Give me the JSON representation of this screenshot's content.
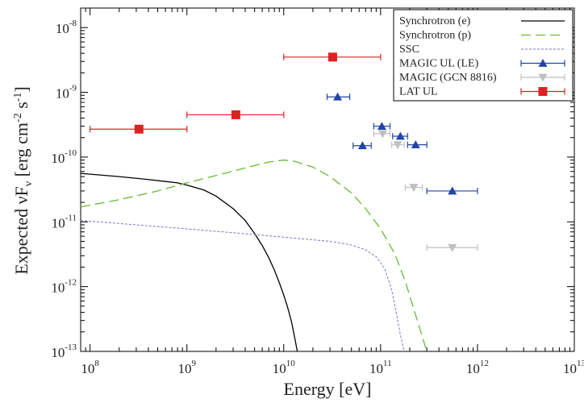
{
  "chart_data": {
    "type": "line",
    "xlabel": "Energy [eV]",
    "ylabel": {
      "prefix": "Expected ",
      "nu": "ν",
      "F": "F",
      "sub": "ν",
      "unit_a": " [erg cm",
      "sup_a": "-2",
      "unit_b": " s",
      "sup_b": "-1",
      "unit_c": "]"
    },
    "xscale": "log",
    "yscale": "log",
    "xlim": [
      80000000.0,
      10000000000000.0
    ],
    "ylim": [
      1e-13,
      2e-08
    ],
    "x_ticks": [
      {
        "base": "10",
        "exp": "8",
        "value": 100000000.0
      },
      {
        "base": "10",
        "exp": "9",
        "value": 1000000000.0
      },
      {
        "base": "10",
        "exp": "10",
        "value": 10000000000.0
      },
      {
        "base": "10",
        "exp": "11",
        "value": 100000000000.0
      },
      {
        "base": "10",
        "exp": "12",
        "value": 1000000000000.0
      },
      {
        "base": "10",
        "exp": "13",
        "value": 10000000000000.0
      }
    ],
    "y_ticks": [
      {
        "base": "10",
        "exp": "-13",
        "value": 1e-13
      },
      {
        "base": "10",
        "exp": "-12",
        "value": 1e-12
      },
      {
        "base": "10",
        "exp": "-11",
        "value": 1e-11
      },
      {
        "base": "10",
        "exp": "-10",
        "value": 1e-10
      },
      {
        "base": "10",
        "exp": "-9",
        "value": 1e-09
      },
      {
        "base": "10",
        "exp": "-8",
        "value": 1e-08
      }
    ],
    "grid": false,
    "legend_position": "top-right",
    "series": [
      {
        "name": "Synchrotron (e)",
        "kind": "line",
        "color": "#000000",
        "dash": "",
        "points": [
          [
            80000000.0,
            5.6e-11
          ],
          [
            200000000.0,
            5e-11
          ],
          [
            400000000.0,
            4.5e-11
          ],
          [
            600000000.0,
            4.2e-11
          ],
          [
            800000000.0,
            4e-11
          ],
          [
            1000000000.0,
            3.7e-11
          ],
          [
            1500000000.0,
            3.1e-11
          ],
          [
            2000000000.0,
            2.5e-11
          ],
          [
            3000000000.0,
            1.6e-11
          ],
          [
            4000000000.0,
            1.05e-11
          ],
          [
            5000000000.0,
            6.6e-12
          ],
          [
            6000000000.0,
            4.3e-12
          ],
          [
            7000000000.0,
            2.8e-12
          ],
          [
            8000000000.0,
            1.8e-12
          ],
          [
            9000000000.0,
            1.15e-12
          ],
          [
            10000000000.0,
            7.4e-13
          ],
          [
            11000000000.0,
            4.7e-13
          ],
          [
            12000000000.0,
            2.9e-13
          ],
          [
            13000000000.0,
            1.6e-13
          ],
          [
            13800000000.0,
            1e-13
          ]
        ]
      },
      {
        "name": "Synchrotron (p)",
        "kind": "line",
        "color": "#66bb33",
        "dash": "12,6",
        "points": [
          [
            80000000.0,
            1.7e-11
          ],
          [
            200000000.0,
            2.2e-11
          ],
          [
            500000000.0,
            3e-11
          ],
          [
            1000000000.0,
            4e-11
          ],
          [
            2000000000.0,
            5.2e-11
          ],
          [
            4000000000.0,
            6.8e-11
          ],
          [
            7000000000.0,
            8.4e-11
          ],
          [
            10000000000.0,
            9e-11
          ],
          [
            13000000000.0,
            8.6e-11
          ],
          [
            20000000000.0,
            7e-11
          ],
          [
            30000000000.0,
            5e-11
          ],
          [
            50000000000.0,
            2.8e-11
          ],
          [
            70000000000.0,
            1.6e-11
          ],
          [
            100000000000.0,
            7.8e-12
          ],
          [
            140000000000.0,
            3.2e-12
          ],
          [
            180000000000.0,
            1.2e-12
          ],
          [
            220000000000.0,
            4.5e-13
          ],
          [
            260000000000.0,
            2e-13
          ],
          [
            300000000000.0,
            1e-13
          ]
        ]
      },
      {
        "name": "SSC",
        "kind": "line",
        "color": "#7777cc",
        "dash": "3,2",
        "points": [
          [
            80000000.0,
            1.05e-11
          ],
          [
            300000000.0,
            9e-12
          ],
          [
            1000000000.0,
            7.8e-12
          ],
          [
            3000000000.0,
            6.8e-12
          ],
          [
            10000000000.0,
            5.8e-12
          ],
          [
            30000000000.0,
            5e-12
          ],
          [
            50000000000.0,
            4.4e-12
          ],
          [
            70000000000.0,
            3.7e-12
          ],
          [
            90000000000.0,
            2.9e-12
          ],
          [
            110000000000.0,
            1.9e-12
          ],
          [
            130000000000.0,
            9e-13
          ],
          [
            145000000000.0,
            4e-13
          ],
          [
            160000000000.0,
            1.8e-13
          ],
          [
            175000000000.0,
            1e-13
          ]
        ]
      },
      {
        "name": "MAGIC UL (LE)",
        "kind": "ul-points",
        "color": "#2244aa",
        "marker": "triangle-up",
        "points": [
          {
            "x": 36000000000.0,
            "y": 8.5e-10,
            "xerr": [
              28000000000.0,
              48000000000.0
            ]
          },
          {
            "x": 103000000000.0,
            "y": 3e-10,
            "xerr": [
              85000000000.0,
              125000000000.0
            ]
          },
          {
            "x": 160000000000.0,
            "y": 2.1e-10,
            "xerr": [
              133000000000.0,
              190000000000.0
            ]
          },
          {
            "x": 65000000000.0,
            "y": 1.5e-10,
            "xerr": [
              52000000000.0,
              80000000000.0
            ]
          },
          {
            "x": 230000000000.0,
            "y": 1.55e-10,
            "xerr": [
              190000000000.0,
              300000000000.0
            ]
          },
          {
            "x": 550000000000.0,
            "y": 3e-11,
            "xerr": [
              300000000000.0,
              1000000000000.0
            ]
          }
        ]
      },
      {
        "name": "MAGIC (GCN 8816)",
        "kind": "ul-points",
        "color": "#c0c0c0",
        "marker": "triangle-down",
        "points": [
          {
            "x": 105000000000.0,
            "y": 2.3e-10,
            "xerr": [
              85000000000.0,
              125000000000.0
            ]
          },
          {
            "x": 150000000000.0,
            "y": 1.55e-10,
            "xerr": [
              130000000000.0,
              175000000000.0
            ]
          },
          {
            "x": 220000000000.0,
            "y": 3.4e-11,
            "xerr": [
              180000000000.0,
              270000000000.0
            ]
          },
          {
            "x": 550000000000.0,
            "y": 4e-12,
            "xerr": [
              300000000000.0,
              1000000000000.0
            ]
          }
        ]
      },
      {
        "name": "LAT UL",
        "kind": "ul-points",
        "color": "#dd2222",
        "marker": "square",
        "points": [
          {
            "x": 320000000.0,
            "y": 2.7e-10,
            "xerr": [
              100000000.0,
              1000000000.0
            ]
          },
          {
            "x": 3200000000.0,
            "y": 4.5e-10,
            "xerr": [
              1000000000.0,
              10000000000.0
            ]
          },
          {
            "x": 32000000000.0,
            "y": 3.5e-09,
            "xerr": [
              10000000000.0,
              100000000000.0
            ]
          }
        ]
      }
    ]
  }
}
